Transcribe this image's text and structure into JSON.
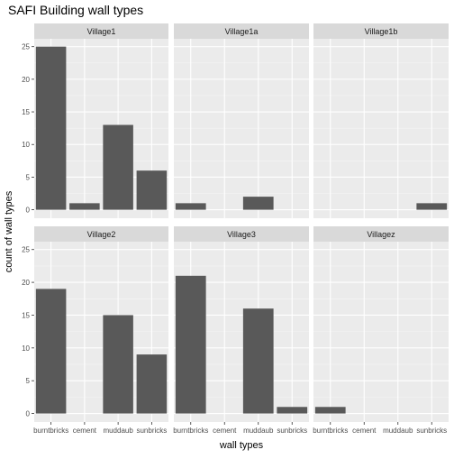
{
  "chart_data": {
    "type": "bar",
    "title": "SAFI Building wall types",
    "xlabel": "wall types",
    "ylabel": "count of wall types",
    "categories": [
      "burntbricks",
      "cement",
      "muddaub",
      "sunbricks"
    ],
    "ylim": [
      0,
      25
    ],
    "yticks": [
      0,
      5,
      10,
      15,
      20,
      25
    ],
    "grid": true,
    "facets": [
      {
        "name": "Village1",
        "values": [
          25,
          1,
          13,
          6
        ]
      },
      {
        "name": "Village1a",
        "values": [
          1,
          0,
          2,
          0
        ]
      },
      {
        "name": "Village1b",
        "values": [
          0,
          0,
          0,
          1
        ]
      },
      {
        "name": "Village2",
        "values": [
          19,
          0,
          15,
          9
        ]
      },
      {
        "name": "Village3",
        "values": [
          21,
          0,
          16,
          1
        ]
      },
      {
        "name": "Villagez",
        "values": [
          1,
          0,
          0,
          0
        ]
      }
    ],
    "colors": {
      "panel_background": "#ebebeb",
      "strip_background": "#d9d9d9",
      "bar_fill": "#595959",
      "grid_major": "#ffffff",
      "text": "#1a1a1a",
      "tick_text": "#4d4d4d"
    }
  }
}
